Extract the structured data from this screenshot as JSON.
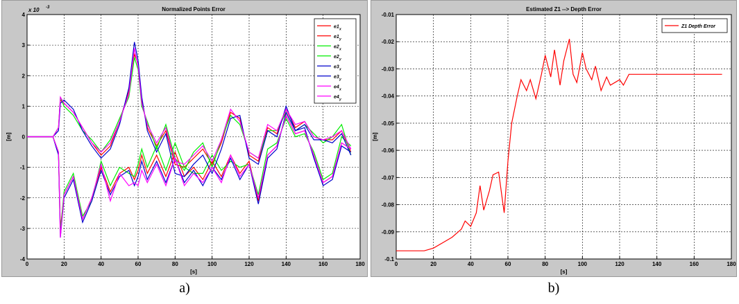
{
  "captions": {
    "a": "a)",
    "b": "b)"
  },
  "chart_data": [
    {
      "type": "line",
      "title": "Normalized Points Error",
      "xlabel": "[s]",
      "ylabel": "[m]",
      "scale_label": "x 10",
      "scale_exponent": "-3",
      "xlim": [
        0,
        180
      ],
      "ylim": [
        -4,
        4
      ],
      "xticks": [
        0,
        20,
        40,
        60,
        80,
        100,
        120,
        140,
        160,
        180
      ],
      "yticks": [
        -4,
        -3,
        -2,
        -1,
        0,
        1,
        2,
        3,
        4
      ],
      "grid": true,
      "legend_position": "top-right",
      "series": [
        {
          "name": "e1",
          "sub": "x",
          "color": "#ff0000",
          "x": [
            0,
            14,
            17,
            18,
            20,
            25,
            30,
            35,
            40,
            45,
            50,
            55,
            58,
            60,
            62,
            65,
            70,
            75,
            80,
            85,
            90,
            95,
            100,
            105,
            110,
            115,
            120,
            125,
            130,
            135,
            140,
            145,
            150,
            155,
            160,
            165,
            170,
            175
          ],
          "y": [
            0,
            0,
            0.3,
            1.2,
            1.1,
            0.8,
            0.3,
            -0.2,
            -0.6,
            -0.3,
            0.5,
            1.5,
            2.7,
            2.4,
            1.2,
            0.3,
            -0.3,
            0.2,
            -0.9,
            -1.0,
            -0.7,
            -0.4,
            -0.9,
            -0.2,
            0.8,
            0.6,
            -0.6,
            -0.8,
            0.3,
            0.1,
            0.9,
            0.3,
            0.5,
            0.0,
            -0.1,
            -0.1,
            0.2,
            -0.5
          ]
        },
        {
          "name": "e1",
          "sub": "y",
          "color": "#ff0000",
          "x": [
            0,
            14,
            17,
            18,
            20,
            25,
            30,
            35,
            40,
            45,
            50,
            55,
            58,
            60,
            62,
            65,
            70,
            75,
            80,
            85,
            90,
            95,
            100,
            105,
            110,
            115,
            120,
            125,
            130,
            135,
            140,
            145,
            150,
            155,
            160,
            165,
            170,
            175
          ],
          "y": [
            0,
            0,
            -0.5,
            -3.0,
            -1.9,
            -1.3,
            -2.7,
            -2.0,
            -1.0,
            -1.8,
            -1.2,
            -1.0,
            -1.4,
            -1.1,
            -0.6,
            -1.2,
            -0.6,
            -1.3,
            -0.5,
            -1.3,
            -1.0,
            -1.4,
            -0.8,
            -1.3,
            -0.6,
            -1.2,
            -0.8,
            -2.1,
            -0.6,
            -0.3,
            0.7,
            0.1,
            0.2,
            -0.6,
            -1.5,
            -1.3,
            -0.2,
            -0.4
          ]
        },
        {
          "name": "e2",
          "sub": "x",
          "color": "#00ee00",
          "x": [
            0,
            14,
            17,
            18,
            20,
            25,
            30,
            35,
            40,
            45,
            50,
            55,
            58,
            60,
            62,
            65,
            70,
            75,
            80,
            85,
            90,
            95,
            100,
            105,
            110,
            115,
            120,
            125,
            130,
            135,
            140,
            145,
            150,
            155,
            160,
            165,
            170,
            175
          ],
          "y": [
            0,
            0,
            0.3,
            1.3,
            1.0,
            0.7,
            0.2,
            -0.1,
            -0.5,
            -0.1,
            0.6,
            1.3,
            2.6,
            2.2,
            1.0,
            0.5,
            -0.4,
            0.4,
            -0.7,
            -1.1,
            -0.5,
            -0.2,
            -1.0,
            -0.1,
            0.7,
            0.4,
            -0.5,
            -0.7,
            0.2,
            0.2,
            0.8,
            0.2,
            0.4,
            0.1,
            -0.2,
            0.0,
            0.4,
            -0.6
          ]
        },
        {
          "name": "e2",
          "sub": "y",
          "color": "#00ee00",
          "x": [
            0,
            14,
            17,
            18,
            20,
            25,
            30,
            35,
            40,
            45,
            50,
            55,
            58,
            60,
            62,
            65,
            70,
            75,
            80,
            85,
            90,
            95,
            100,
            105,
            110,
            115,
            120,
            125,
            130,
            135,
            140,
            145,
            150,
            155,
            160,
            165,
            170,
            175
          ],
          "y": [
            0,
            0,
            -0.5,
            -3.1,
            -1.8,
            -1.2,
            -2.6,
            -2.1,
            -0.8,
            -1.6,
            -1.0,
            -1.2,
            -1.3,
            -0.9,
            -0.4,
            -1.0,
            -0.3,
            -1.1,
            -0.2,
            -1.0,
            -1.2,
            -1.2,
            -0.6,
            -1.1,
            -0.8,
            -1.0,
            -0.9,
            -1.9,
            -0.4,
            -0.2,
            0.6,
            0.0,
            0.1,
            -0.5,
            -1.4,
            -1.2,
            0.0,
            -0.3
          ]
        },
        {
          "name": "e3",
          "sub": "x",
          "color": "#0000cc",
          "x": [
            0,
            14,
            17,
            18,
            20,
            25,
            30,
            35,
            40,
            45,
            50,
            55,
            58,
            60,
            62,
            65,
            70,
            75,
            80,
            85,
            90,
            95,
            100,
            105,
            110,
            115,
            120,
            125,
            130,
            135,
            140,
            145,
            150,
            155,
            160,
            165,
            170,
            175
          ],
          "y": [
            0,
            0,
            0.2,
            1.1,
            1.2,
            0.9,
            0.2,
            -0.3,
            -0.7,
            -0.4,
            0.4,
            1.6,
            3.1,
            2.5,
            1.3,
            0.2,
            -0.5,
            0.1,
            -1.2,
            -1.3,
            -0.9,
            -0.6,
            -1.2,
            -0.4,
            0.6,
            0.7,
            -0.7,
            -0.9,
            0.2,
            0.0,
            1.0,
            0.2,
            0.4,
            -0.1,
            -0.1,
            -0.2,
            0.1,
            -0.6
          ]
        },
        {
          "name": "e3",
          "sub": "y",
          "color": "#0000cc",
          "x": [
            0,
            14,
            17,
            18,
            20,
            25,
            30,
            35,
            40,
            45,
            50,
            55,
            58,
            60,
            62,
            65,
            70,
            75,
            80,
            85,
            90,
            95,
            100,
            105,
            110,
            115,
            120,
            125,
            130,
            135,
            140,
            145,
            150,
            155,
            160,
            165,
            170,
            175
          ],
          "y": [
            0,
            0,
            -0.6,
            -3.3,
            -2.0,
            -1.4,
            -2.8,
            -2.1,
            -1.1,
            -1.9,
            -1.3,
            -1.1,
            -1.6,
            -1.3,
            -0.8,
            -1.4,
            -0.8,
            -1.5,
            -0.7,
            -1.5,
            -1.1,
            -1.6,
            -1.0,
            -1.4,
            -0.7,
            -1.4,
            -0.9,
            -2.2,
            -0.7,
            -0.4,
            0.8,
            0.2,
            0.3,
            -0.7,
            -1.6,
            -1.4,
            -0.3,
            -0.5
          ]
        },
        {
          "name": "e4",
          "sub": "x",
          "color": "#ff00ff",
          "x": [
            0,
            14,
            17,
            18,
            20,
            25,
            30,
            35,
            40,
            45,
            50,
            55,
            58,
            60,
            62,
            65,
            70,
            75,
            80,
            85,
            90,
            95,
            100,
            105,
            110,
            115,
            120,
            125,
            130,
            135,
            140,
            145,
            150,
            155,
            160,
            165,
            170,
            175
          ],
          "y": [
            0,
            0,
            0.3,
            1.3,
            1.1,
            0.8,
            0.3,
            -0.2,
            -0.5,
            -0.2,
            0.5,
            1.4,
            2.9,
            2.3,
            1.1,
            0.4,
            -0.2,
            0.3,
            -0.8,
            -0.9,
            -0.6,
            -0.3,
            -0.8,
            -0.1,
            0.9,
            0.5,
            -0.5,
            -0.7,
            0.4,
            0.2,
            0.9,
            0.4,
            0.5,
            0.0,
            -0.1,
            0.0,
            0.2,
            -0.4
          ]
        },
        {
          "name": "e4",
          "sub": "y",
          "color": "#ff00ff",
          "x": [
            0,
            14,
            17,
            18,
            20,
            25,
            30,
            35,
            40,
            45,
            50,
            55,
            58,
            60,
            62,
            65,
            70,
            75,
            80,
            85,
            90,
            95,
            100,
            105,
            110,
            115,
            120,
            125,
            130,
            135,
            140,
            145,
            150,
            155,
            160,
            165,
            170,
            175
          ],
          "y": [
            0,
            0,
            -0.5,
            -3.3,
            -1.9,
            -1.3,
            -2.7,
            -2.0,
            -0.9,
            -2.1,
            -1.2,
            -1.6,
            -1.5,
            -1.6,
            -1.1,
            -1.5,
            -0.9,
            -1.6,
            -0.7,
            -1.6,
            -1.2,
            -1.5,
            -1.0,
            -1.5,
            -0.6,
            -1.3,
            -0.9,
            -2.0,
            -0.6,
            -0.3,
            0.7,
            0.1,
            0.2,
            -0.6,
            -1.5,
            -1.3,
            -0.2,
            -0.4
          ]
        }
      ]
    },
    {
      "type": "line",
      "title": "Estimated Z1 --> Depth Error",
      "xlabel": "[s]",
      "ylabel": "[m]",
      "xlim": [
        0,
        180
      ],
      "ylim": [
        -0.1,
        -0.01
      ],
      "xticks": [
        0,
        20,
        40,
        60,
        80,
        100,
        120,
        140,
        160,
        180
      ],
      "yticks": [
        -0.1,
        -0.09,
        -0.08,
        -0.07,
        -0.06,
        -0.05,
        -0.04,
        -0.03,
        -0.02,
        -0.01
      ],
      "grid": true,
      "legend_position": "top-right",
      "series": [
        {
          "name": "Z1 Depth Error",
          "color": "#ff0000",
          "x": [
            0,
            15,
            20,
            25,
            30,
            35,
            37,
            40,
            43,
            45,
            47,
            50,
            52,
            55,
            57,
            58,
            60,
            62,
            65,
            67,
            70,
            72,
            75,
            78,
            80,
            83,
            85,
            88,
            90,
            93,
            95,
            97,
            100,
            102,
            105,
            107,
            110,
            113,
            115,
            120,
            122,
            125,
            130,
            140,
            150,
            160,
            170,
            175
          ],
          "y": [
            -0.097,
            -0.097,
            -0.096,
            -0.094,
            -0.092,
            -0.089,
            -0.086,
            -0.088,
            -0.083,
            -0.073,
            -0.082,
            -0.075,
            -0.069,
            -0.068,
            -0.078,
            -0.083,
            -0.064,
            -0.05,
            -0.04,
            -0.034,
            -0.038,
            -0.034,
            -0.041,
            -0.032,
            -0.025,
            -0.033,
            -0.023,
            -0.036,
            -0.027,
            -0.019,
            -0.032,
            -0.035,
            -0.024,
            -0.03,
            -0.034,
            -0.029,
            -0.038,
            -0.033,
            -0.036,
            -0.034,
            -0.036,
            -0.032,
            -0.032,
            -0.032,
            -0.032,
            -0.032,
            -0.032,
            -0.032
          ]
        }
      ]
    }
  ]
}
